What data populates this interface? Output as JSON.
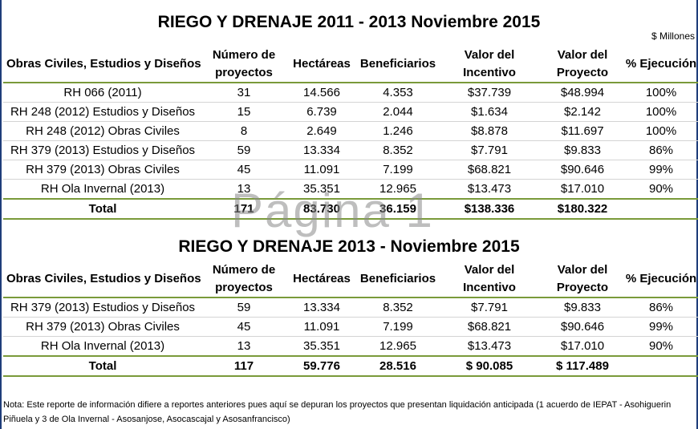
{
  "units": "$ Millones",
  "watermark": "Página 1",
  "headers": [
    "Obras Civiles, Estudios y Diseños",
    "Número de proyectos",
    "Hectáreas",
    "Beneficiarios",
    "Valor del Incentivo",
    "Valor del Proyecto",
    "% Ejecución"
  ],
  "table1": {
    "title": "RIEGO Y DRENAJE 2011 - 2013 Noviembre 2015",
    "rows": [
      [
        "RH 066 (2011)",
        "31",
        "14.566",
        "4.353",
        "$37.739",
        "$48.994",
        "100%"
      ],
      [
        "RH 248 (2012) Estudios y Diseños",
        "15",
        "6.739",
        "2.044",
        "$1.634",
        "$2.142",
        "100%"
      ],
      [
        "RH 248 (2012) Obras Civiles",
        "8",
        "2.649",
        "1.246",
        "$8.878",
        "$11.697",
        "100%"
      ],
      [
        "RH 379 (2013) Estudios y Diseños",
        "59",
        "13.334",
        "8.352",
        "$7.791",
        "$9.833",
        "86%"
      ],
      [
        "RH 379 (2013) Obras Civiles",
        "45",
        "11.091",
        "7.199",
        "$68.821",
        "$90.646",
        "99%"
      ],
      [
        "RH Ola Invernal (2013)",
        "13",
        "35.351",
        "12.965",
        "$13.473",
        "$17.010",
        "90%"
      ]
    ],
    "total": [
      "Total",
      "171",
      "83.730",
      "36.159",
      "$138.336",
      "$180.322",
      ""
    ]
  },
  "table2": {
    "title": "RIEGO Y DRENAJE 2013 - Noviembre 2015",
    "rows": [
      [
        "RH 379 (2013) Estudios y Diseños",
        "59",
        "13.334",
        "8.352",
        "$7.791",
        "$9.833",
        "86%"
      ],
      [
        "RH 379 (2013) Obras Civiles",
        "45",
        "11.091",
        "7.199",
        "$68.821",
        "$90.646",
        "99%"
      ],
      [
        "RH Ola Invernal (2013)",
        "13",
        "35.351",
        "12.965",
        "$13.473",
        "$17.010",
        "90%"
      ]
    ],
    "total": [
      "Total",
      "117",
      "59.776",
      "28.516",
      "$ 90.085",
      "$ 117.489",
      ""
    ]
  },
  "note": "Nota: Este reporte de información difiere a reportes anteriores pues aquí se depuran los proyectos que presentan liquidación anticipada (1 acuerdo de IEPAT - Asohiguerin Piñuela y 3 de Ola Invernal - Asosanjose, Asocascajal y Asosanfrancisco)"
}
